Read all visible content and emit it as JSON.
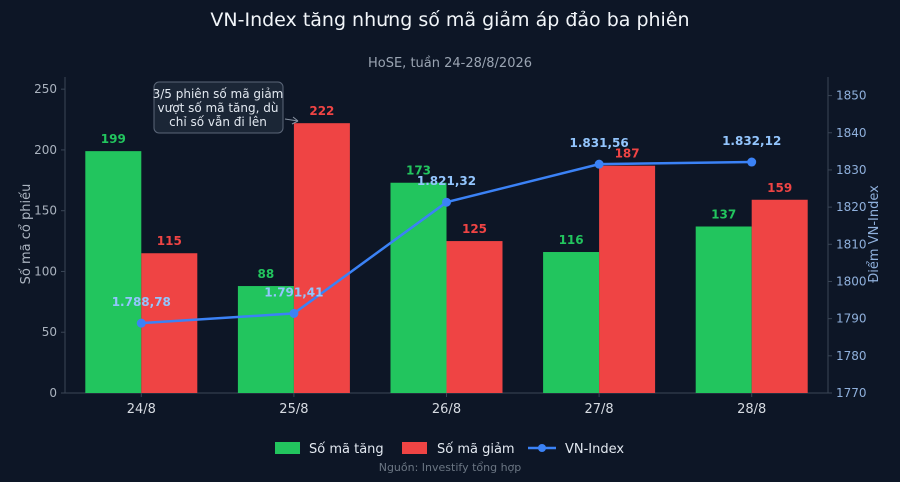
{
  "chart_data": {
    "type": "bar",
    "title": "VN-Index tăng nhưng số mã giảm áp đảo ba phiên",
    "subtitle": "HoSE, tuần 24-28/8/2026",
    "categories": [
      "24/8",
      "25/8",
      "26/8",
      "27/8",
      "28/8"
    ],
    "series": [
      {
        "name": "Số mã tăng",
        "type": "bar",
        "axis": "left",
        "color": "#22c55e",
        "values": [
          199,
          88,
          173,
          116,
          137
        ],
        "labels": [
          "199",
          "88",
          "173",
          "116",
          "137"
        ]
      },
      {
        "name": "Số mã giảm",
        "type": "bar",
        "axis": "left",
        "color": "#ef4444",
        "values": [
          115,
          222,
          125,
          187,
          159
        ],
        "labels": [
          "115",
          "222",
          "125",
          "187",
          "159"
        ]
      },
      {
        "name": "VN-Index",
        "type": "line",
        "axis": "right",
        "color": "#3b82f6",
        "values": [
          1788.78,
          1791.41,
          1821.32,
          1831.56,
          1832.12
        ],
        "labels": [
          "1.788,78",
          "1.791,41",
          "1.821,32",
          "1.831,56",
          "1.832,12"
        ]
      }
    ],
    "ylabel": "Số mã cổ phiếu",
    "ylim": [
      0,
      260
    ],
    "yticks": [
      0,
      50,
      100,
      150,
      200,
      250
    ],
    "y2label": "Điểm VN-Index",
    "y2lim": [
      1770,
      1855
    ],
    "y2ticks": [
      1770,
      1780,
      1790,
      1800,
      1810,
      1820,
      1830,
      1840,
      1850
    ],
    "grid": false,
    "legend": "bottom-center",
    "annotation": {
      "lines": [
        "3/5 phiên số mã giảm",
        "vượt số mã tăng, dù",
        "chỉ số vẫn đi lên"
      ],
      "target_category": "25/8"
    },
    "source": "Nguồn: Investify tổng hợp"
  },
  "colors": {
    "background": "#0d1626",
    "axis": "#3a4656",
    "label_up": "#22c55e",
    "label_down": "#ef4444",
    "label_index": "#93c5fd"
  }
}
